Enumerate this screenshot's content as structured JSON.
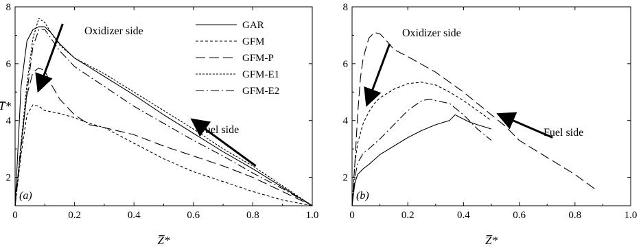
{
  "chart_data": [
    {
      "type": "line",
      "panel_label": "(a)",
      "xlabel": "Z̅*",
      "ylabel": "T̅*",
      "xlim": [
        0,
        1.0
      ],
      "ylim": [
        1,
        8
      ],
      "xticks": [
        "0",
        "0.2",
        "0.4",
        "0.6",
        "0.8",
        "1.0"
      ],
      "yticks": [
        "2",
        "4",
        "6",
        "8"
      ],
      "legend": {
        "placement": "top-right"
      },
      "annotations": [
        {
          "text": "Oxidizer side",
          "arrow_from": [
            0.16,
            7.4
          ],
          "arrow_to": [
            0.08,
            5.1
          ]
        },
        {
          "text": "Fuel side",
          "arrow_from": [
            0.81,
            2.4
          ],
          "arrow_to": [
            0.6,
            4.0
          ]
        }
      ],
      "series": [
        {
          "name": "GAR",
          "style": "solid",
          "x": [
            0,
            0.02,
            0.04,
            0.06,
            0.08,
            0.1,
            0.12,
            0.15,
            0.2,
            0.3,
            0.4,
            0.5,
            0.6,
            0.7,
            0.8,
            0.9,
            1.0
          ],
          "y": [
            1.0,
            5.2,
            6.8,
            7.2,
            7.3,
            7.3,
            7.1,
            6.7,
            6.2,
            5.55,
            4.9,
            4.2,
            3.55,
            2.9,
            2.3,
            1.65,
            1.0
          ]
        },
        {
          "name": "GFM",
          "style": "short-dash",
          "x": [
            0,
            0.02,
            0.04,
            0.06,
            0.08,
            0.1,
            0.15,
            0.2,
            0.25,
            0.3,
            0.4,
            0.5,
            0.6,
            0.7,
            0.8,
            0.9,
            1.0
          ],
          "y": [
            1.0,
            2.8,
            4.2,
            4.55,
            4.5,
            4.35,
            4.25,
            4.1,
            3.9,
            3.75,
            3.2,
            2.65,
            2.2,
            1.85,
            1.5,
            1.2,
            1.0
          ]
        },
        {
          "name": "GFM-P",
          "style": "long-dash",
          "x": [
            0,
            0.02,
            0.04,
            0.06,
            0.08,
            0.1,
            0.12,
            0.15,
            0.2,
            0.25,
            0.3,
            0.4,
            0.5,
            0.6,
            0.7,
            0.8,
            0.9,
            1.0
          ],
          "y": [
            1.0,
            3.2,
            4.9,
            5.7,
            5.85,
            5.75,
            5.3,
            4.75,
            4.2,
            3.85,
            3.75,
            3.5,
            3.1,
            2.75,
            2.4,
            2.0,
            1.5,
            1.0
          ]
        },
        {
          "name": "GFM-E1",
          "style": "fine-dash",
          "x": [
            0,
            0.02,
            0.04,
            0.06,
            0.08,
            0.1,
            0.12,
            0.15,
            0.2,
            0.3,
            0.4,
            0.5,
            0.6,
            0.7,
            0.8,
            0.9,
            1.0
          ],
          "y": [
            1.0,
            3.2,
            5.3,
            6.9,
            7.6,
            7.45,
            7.1,
            6.65,
            6.2,
            5.65,
            5.0,
            4.35,
            3.7,
            3.0,
            2.4,
            1.7,
            1.0
          ]
        },
        {
          "name": "GFM-E2",
          "style": "dash-dot",
          "x": [
            0,
            0.02,
            0.04,
            0.06,
            0.08,
            0.1,
            0.12,
            0.15,
            0.2,
            0.3,
            0.4,
            0.5,
            0.6,
            0.7,
            0.8,
            0.9,
            1.0
          ],
          "y": [
            1.0,
            3.0,
            5.0,
            6.6,
            7.2,
            7.2,
            6.9,
            6.45,
            5.9,
            5.2,
            4.5,
            3.9,
            3.3,
            2.75,
            2.15,
            1.6,
            1.0
          ]
        }
      ]
    },
    {
      "type": "line",
      "panel_label": "(b)",
      "xlabel": "Z̅*",
      "ylabel": "",
      "xlim": [
        0,
        1.0
      ],
      "ylim": [
        1,
        8
      ],
      "xticks": [
        "0",
        "0.2",
        "0.4",
        "0.6",
        "0.8",
        "1.0"
      ],
      "yticks": [
        "2",
        "4",
        "6",
        "8"
      ],
      "annotations": [
        {
          "text": "Oxidizer side",
          "arrow_from": [
            0.135,
            6.7
          ],
          "arrow_to": [
            0.055,
            4.6
          ]
        },
        {
          "text": "Fuel side",
          "arrow_from": [
            0.72,
            3.4
          ],
          "arrow_to": [
            0.53,
            4.2
          ]
        }
      ],
      "series": [
        {
          "name": "GAR",
          "style": "solid",
          "x": [
            0,
            0.01,
            0.02,
            0.04,
            0.06,
            0.1,
            0.15,
            0.2,
            0.25,
            0.3,
            0.35,
            0.37,
            0.39,
            0.42,
            0.45,
            0.5
          ],
          "y": [
            1.0,
            1.8,
            2.1,
            2.3,
            2.45,
            2.8,
            3.1,
            3.4,
            3.65,
            3.85,
            4.0,
            4.2,
            4.1,
            3.95,
            3.85,
            3.7
          ]
        },
        {
          "name": "GFM",
          "style": "short-dash",
          "x": [
            0,
            0.01,
            0.02,
            0.04,
            0.06,
            0.08,
            0.1,
            0.15,
            0.2,
            0.25,
            0.3,
            0.35,
            0.4,
            0.45,
            0.5
          ],
          "y": [
            1.0,
            2.5,
            3.2,
            3.9,
            4.3,
            4.6,
            4.8,
            5.1,
            5.3,
            5.35,
            5.25,
            5.0,
            4.7,
            4.35,
            4.0
          ]
        },
        {
          "name": "GFM-P",
          "style": "long-dash",
          "x": [
            0,
            0.01,
            0.02,
            0.03,
            0.04,
            0.06,
            0.08,
            0.1,
            0.12,
            0.15,
            0.2,
            0.3,
            0.4,
            0.5,
            0.55,
            0.6,
            0.7,
            0.8,
            0.87
          ],
          "y": [
            1.0,
            2.5,
            4.2,
            5.5,
            6.2,
            6.9,
            7.1,
            7.05,
            6.85,
            6.5,
            6.25,
            5.7,
            5.0,
            4.2,
            3.8,
            3.3,
            2.7,
            2.1,
            1.6
          ]
        },
        {
          "name": "GFM-E2",
          "style": "dash-dot",
          "x": [
            0,
            0.01,
            0.02,
            0.04,
            0.06,
            0.1,
            0.15,
            0.2,
            0.25,
            0.28,
            0.3,
            0.35,
            0.4,
            0.45,
            0.5
          ],
          "y": [
            1.0,
            2.0,
            2.5,
            2.85,
            3.0,
            3.35,
            3.85,
            4.35,
            4.7,
            4.75,
            4.7,
            4.6,
            4.2,
            3.7,
            3.3
          ]
        }
      ]
    }
  ]
}
